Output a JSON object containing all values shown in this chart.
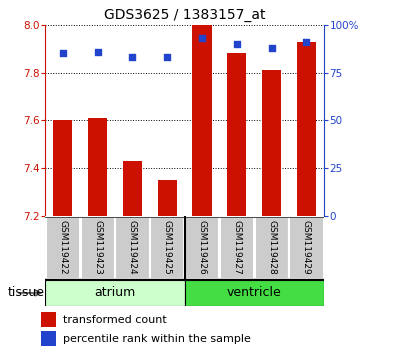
{
  "title": "GDS3625 / 1383157_at",
  "samples": [
    "GSM119422",
    "GSM119423",
    "GSM119424",
    "GSM119425",
    "GSM119426",
    "GSM119427",
    "GSM119428",
    "GSM119429"
  ],
  "transformed_count": [
    7.6,
    7.61,
    7.43,
    7.35,
    8.0,
    7.88,
    7.81,
    7.93
  ],
  "percentile_rank": [
    85,
    86,
    83,
    83,
    93,
    90,
    88,
    91
  ],
  "ylim_left": [
    7.2,
    8.0
  ],
  "ylim_right": [
    0,
    100
  ],
  "yticks_left": [
    7.2,
    7.4,
    7.6,
    7.8,
    8.0
  ],
  "yticks_right": [
    0,
    25,
    50,
    75,
    100
  ],
  "bar_color": "#cc1100",
  "dot_color": "#2244cc",
  "background_color": "#ffffff",
  "atrium_color": "#ccffcc",
  "ventricle_color": "#44dd44",
  "sample_box_color": "#cccccc",
  "tissue_label": "tissue",
  "legend_bar_label": "transformed count",
  "legend_dot_label": "percentile rank within the sample",
  "baseline": 7.2,
  "n_atrium": 4,
  "n_ventricle": 4
}
